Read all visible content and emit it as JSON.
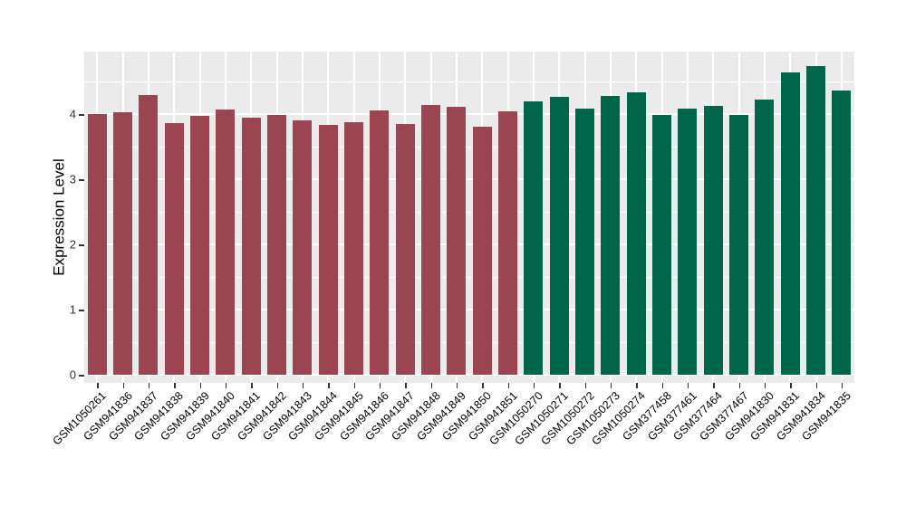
{
  "figure": {
    "background": "#ffffff",
    "panel_background": "#ebebeb",
    "gridline_color": "#ffffff",
    "tick_color": "#333333",
    "text_color": "#000000"
  },
  "chart_data": {
    "type": "bar",
    "ylabel": "Expression Level",
    "xlabel": "",
    "ylim": [
      0,
      4.96
    ],
    "yticks": [
      0,
      1,
      2,
      3,
      4
    ],
    "yticks_minor": [
      0.5,
      1.5,
      2.5,
      3.5,
      4.5
    ],
    "grid": "white major and minor horizontal lines plus vertical lines at category centers on gray panel",
    "legend_position": "none",
    "categories": [
      "GSM1050261",
      "GSM941836",
      "GSM941837",
      "GSM941838",
      "GSM941839",
      "GSM941840",
      "GSM941841",
      "GSM941842",
      "GSM941843",
      "GSM941844",
      "GSM941845",
      "GSM941846",
      "GSM941847",
      "GSM941848",
      "GSM941849",
      "GSM941850",
      "GSM941851",
      "GSM1050270",
      "GSM1050271",
      "GSM1050272",
      "GSM1050273",
      "GSM1050274",
      "GSM377458",
      "GSM377461",
      "GSM377464",
      "GSM377467",
      "GSM941830",
      "GSM941831",
      "GSM941834",
      "GSM941835"
    ],
    "values": [
      4.0,
      4.03,
      4.29,
      3.86,
      3.97,
      4.07,
      3.94,
      3.99,
      3.9,
      3.83,
      3.88,
      4.06,
      3.85,
      4.14,
      4.11,
      3.81,
      4.04,
      4.2,
      4.26,
      4.09,
      4.28,
      4.34,
      3.99,
      4.09,
      4.12,
      3.99,
      4.22,
      4.64,
      4.73,
      4.36
    ],
    "groups": [
      "A",
      "A",
      "A",
      "A",
      "A",
      "A",
      "A",
      "A",
      "A",
      "A",
      "A",
      "A",
      "A",
      "A",
      "A",
      "A",
      "A",
      "B",
      "B",
      "B",
      "B",
      "B",
      "B",
      "B",
      "B",
      "B",
      "B",
      "B",
      "B",
      "B"
    ],
    "group_colors": {
      "A": "#9b4452",
      "B": "#006649"
    }
  }
}
